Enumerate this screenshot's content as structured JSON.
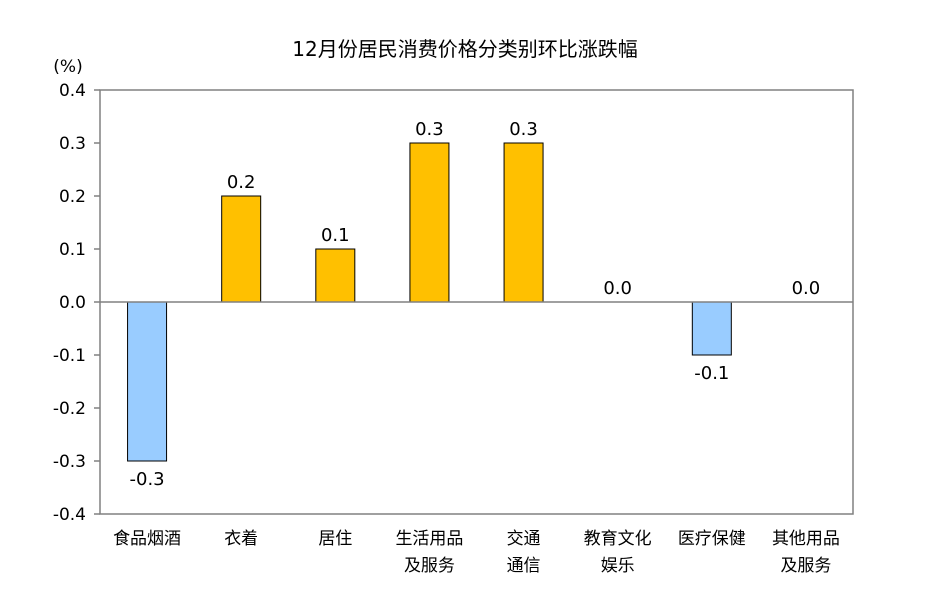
{
  "chart_data": {
    "type": "bar",
    "title": "12月份居民消费价格分类别环比涨跌幅",
    "unit_label": "(%)",
    "xlabel": "",
    "ylabel": "",
    "ylim": [
      -0.4,
      0.4
    ],
    "yticks": [
      "0.4",
      "0.3",
      "0.2",
      "0.1",
      "0.0",
      "-0.1",
      "-0.2",
      "-0.3",
      "-0.4"
    ],
    "ytick_values": [
      0.4,
      0.3,
      0.2,
      0.1,
      0.0,
      -0.1,
      -0.2,
      -0.3,
      -0.4
    ],
    "grid": false,
    "legend": "none",
    "categories": [
      [
        "食品烟酒"
      ],
      [
        "衣着"
      ],
      [
        "居住"
      ],
      [
        "生活用品",
        "及服务"
      ],
      [
        "交通",
        "通信"
      ],
      [
        "教育文化",
        "娱乐"
      ],
      [
        "医疗保健"
      ],
      [
        "其他用品",
        "及服务"
      ]
    ],
    "values": [
      -0.3,
      0.2,
      0.1,
      0.3,
      0.3,
      0.0,
      -0.1,
      0.0
    ],
    "data_labels": [
      "-0.3",
      "0.2",
      "0.1",
      "0.3",
      "0.3",
      "0.0",
      "-0.1",
      "0.0"
    ],
    "colors": {
      "positive": "#FFC000",
      "negative": "#99CCFF",
      "bar_border": "#000000",
      "axis": "#808080"
    }
  }
}
